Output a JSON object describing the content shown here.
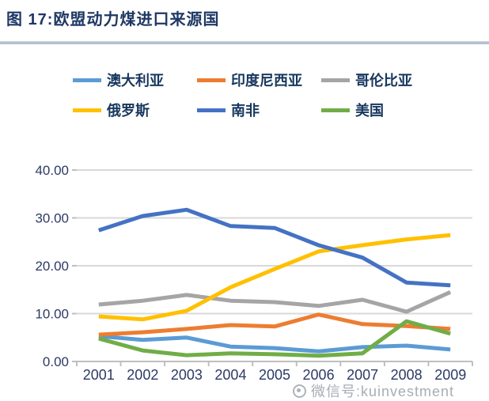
{
  "page": {
    "title": "图 17:欧盟动力煤进口来源国",
    "watermark": "微信号:kuinvestment"
  },
  "colors": {
    "title_text": "#1F3864",
    "legend_text": "#17375E",
    "axis_text": "#2C3A66",
    "divider": "#B3C1CF",
    "gridline": "#D9D9D9",
    "axis_line": "#BFBFBF",
    "watermark": "#A7AEB5"
  },
  "chart_data": {
    "type": "line",
    "title": "图 17:欧盟动力煤进口来源国",
    "categories": [
      "2001",
      "2002",
      "2003",
      "2004",
      "2005",
      "2006",
      "2007",
      "2008",
      "2009"
    ],
    "series": [
      {
        "name": "澳大利亚",
        "color": "#5B9BD5",
        "values": [
          5.3,
          4.5,
          5.0,
          3.1,
          2.8,
          2.1,
          3.0,
          3.3,
          2.5
        ]
      },
      {
        "name": "印度尼西亚",
        "color": "#ED7D31",
        "values": [
          5.6,
          6.1,
          6.8,
          7.6,
          7.3,
          9.8,
          7.8,
          7.4,
          6.8
        ]
      },
      {
        "name": "哥伦比亚",
        "color": "#A5A5A5",
        "values": [
          11.9,
          12.7,
          13.9,
          12.7,
          12.4,
          11.6,
          12.9,
          10.4,
          14.5
        ]
      },
      {
        "name": "俄罗斯",
        "color": "#FFC000",
        "values": [
          9.4,
          8.8,
          10.6,
          15.5,
          19.3,
          23.0,
          24.3,
          25.5,
          26.4
        ]
      },
      {
        "name": "南非",
        "color": "#4472C4",
        "values": [
          27.4,
          30.4,
          31.7,
          28.3,
          27.9,
          24.3,
          21.7,
          16.5,
          15.9
        ]
      },
      {
        "name": "美国",
        "color": "#70AD47",
        "values": [
          4.8,
          2.3,
          1.3,
          1.7,
          1.5,
          1.2,
          1.7,
          8.4,
          5.8
        ]
      }
    ],
    "ylim": [
      0,
      40
    ],
    "ytick_step": 10,
    "ytick_labels": [
      "0.00",
      "10.00",
      "20.00",
      "30.00",
      "40.00"
    ],
    "xlabel": "",
    "ylabel": "",
    "grid": true,
    "legend_position": "top"
  }
}
